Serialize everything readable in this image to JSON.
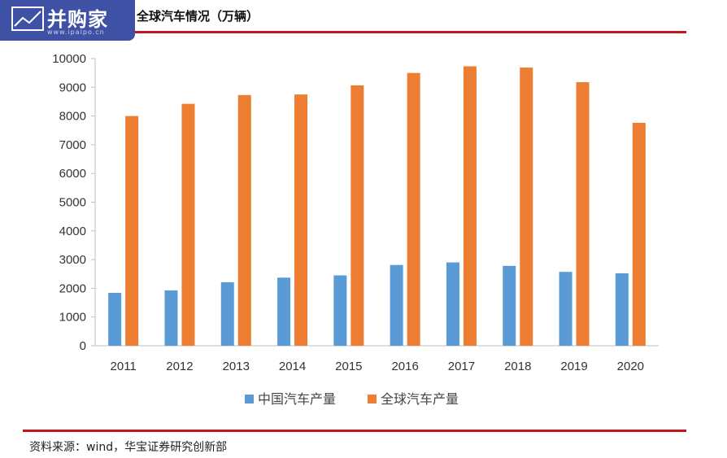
{
  "logo": {
    "text": "并购家",
    "url": "www.ipaipo.cn"
  },
  "title": "全球汽车情况（万辆）",
  "source": "资料来源：wind，华宝证券研究创新部",
  "colors": {
    "china": "#5b9bd5",
    "global": "#ed7d31",
    "rule": "#c0161d",
    "axis": "#bfbfbf"
  },
  "chart_data": {
    "type": "bar",
    "title": "全球汽车情况（万辆）",
    "categories": [
      "2011",
      "2012",
      "2013",
      "2014",
      "2015",
      "2016",
      "2017",
      "2018",
      "2019",
      "2020"
    ],
    "series": [
      {
        "name": "中国汽车产量",
        "values": [
          1842,
          1927,
          2212,
          2372,
          2450,
          2812,
          2902,
          2781,
          2572,
          2523
        ]
      },
      {
        "name": "全球汽车产量",
        "values": [
          8000,
          8424,
          8730,
          8750,
          9068,
          9498,
          9730,
          9686,
          9179,
          7762
        ]
      }
    ],
    "ylim": [
      0,
      10000
    ],
    "yticks": [
      "0",
      "1000",
      "2000",
      "3000",
      "4000",
      "5000",
      "6000",
      "7000",
      "8000",
      "9000",
      "10000"
    ],
    "grid": false,
    "legend": "bottom"
  }
}
